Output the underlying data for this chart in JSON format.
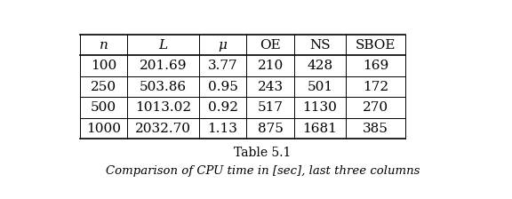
{
  "headers": [
    "n",
    "L",
    "μ",
    "OE",
    "NS",
    "SBOE"
  ],
  "rows": [
    [
      "100",
      "201.69",
      "3.77",
      "210",
      "428",
      "169"
    ],
    [
      "250",
      "503.86",
      "0.95",
      "243",
      "501",
      "172"
    ],
    [
      "500",
      "1013.02",
      "0.92",
      "517",
      "1130",
      "270"
    ],
    [
      "1000",
      "2032.70",
      "1.13",
      "875",
      "1681",
      "385"
    ]
  ],
  "caption_line1": "Table 5.1",
  "caption_line2": "Comparison of CPU time in [sec], last three columns",
  "bg_color": "white",
  "text_color": "black",
  "figsize": [
    5.76,
    2.24
  ],
  "dpi": 100
}
